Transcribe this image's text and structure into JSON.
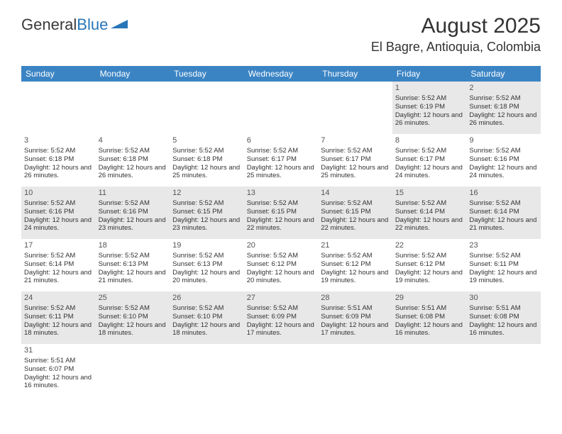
{
  "logo": {
    "text_general": "General",
    "text_blue": "Blue"
  },
  "title": "August 2025",
  "location": "El Bagre, Antioquia, Colombia",
  "colors": {
    "header_bg": "#3b84c4",
    "header_text": "#ffffff",
    "row_alt_bg": "#e8e8e8",
    "text": "#333333",
    "logo_blue": "#2876b8"
  },
  "weekdays": [
    "Sunday",
    "Monday",
    "Tuesday",
    "Wednesday",
    "Thursday",
    "Friday",
    "Saturday"
  ],
  "weeks": [
    [
      null,
      null,
      null,
      null,
      null,
      {
        "day": "1",
        "sunrise": "5:52 AM",
        "sunset": "6:19 PM",
        "daylight": "12 hours and 26 minutes."
      },
      {
        "day": "2",
        "sunrise": "5:52 AM",
        "sunset": "6:18 PM",
        "daylight": "12 hours and 26 minutes."
      }
    ],
    [
      {
        "day": "3",
        "sunrise": "5:52 AM",
        "sunset": "6:18 PM",
        "daylight": "12 hours and 26 minutes."
      },
      {
        "day": "4",
        "sunrise": "5:52 AM",
        "sunset": "6:18 PM",
        "daylight": "12 hours and 26 minutes."
      },
      {
        "day": "5",
        "sunrise": "5:52 AM",
        "sunset": "6:18 PM",
        "daylight": "12 hours and 25 minutes."
      },
      {
        "day": "6",
        "sunrise": "5:52 AM",
        "sunset": "6:17 PM",
        "daylight": "12 hours and 25 minutes."
      },
      {
        "day": "7",
        "sunrise": "5:52 AM",
        "sunset": "6:17 PM",
        "daylight": "12 hours and 25 minutes."
      },
      {
        "day": "8",
        "sunrise": "5:52 AM",
        "sunset": "6:17 PM",
        "daylight": "12 hours and 24 minutes."
      },
      {
        "day": "9",
        "sunrise": "5:52 AM",
        "sunset": "6:16 PM",
        "daylight": "12 hours and 24 minutes."
      }
    ],
    [
      {
        "day": "10",
        "sunrise": "5:52 AM",
        "sunset": "6:16 PM",
        "daylight": "12 hours and 24 minutes."
      },
      {
        "day": "11",
        "sunrise": "5:52 AM",
        "sunset": "6:16 PM",
        "daylight": "12 hours and 23 minutes."
      },
      {
        "day": "12",
        "sunrise": "5:52 AM",
        "sunset": "6:15 PM",
        "daylight": "12 hours and 23 minutes."
      },
      {
        "day": "13",
        "sunrise": "5:52 AM",
        "sunset": "6:15 PM",
        "daylight": "12 hours and 22 minutes."
      },
      {
        "day": "14",
        "sunrise": "5:52 AM",
        "sunset": "6:15 PM",
        "daylight": "12 hours and 22 minutes."
      },
      {
        "day": "15",
        "sunrise": "5:52 AM",
        "sunset": "6:14 PM",
        "daylight": "12 hours and 22 minutes."
      },
      {
        "day": "16",
        "sunrise": "5:52 AM",
        "sunset": "6:14 PM",
        "daylight": "12 hours and 21 minutes."
      }
    ],
    [
      {
        "day": "17",
        "sunrise": "5:52 AM",
        "sunset": "6:14 PM",
        "daylight": "12 hours and 21 minutes."
      },
      {
        "day": "18",
        "sunrise": "5:52 AM",
        "sunset": "6:13 PM",
        "daylight": "12 hours and 21 minutes."
      },
      {
        "day": "19",
        "sunrise": "5:52 AM",
        "sunset": "6:13 PM",
        "daylight": "12 hours and 20 minutes."
      },
      {
        "day": "20",
        "sunrise": "5:52 AM",
        "sunset": "6:12 PM",
        "daylight": "12 hours and 20 minutes."
      },
      {
        "day": "21",
        "sunrise": "5:52 AM",
        "sunset": "6:12 PM",
        "daylight": "12 hours and 19 minutes."
      },
      {
        "day": "22",
        "sunrise": "5:52 AM",
        "sunset": "6:12 PM",
        "daylight": "12 hours and 19 minutes."
      },
      {
        "day": "23",
        "sunrise": "5:52 AM",
        "sunset": "6:11 PM",
        "daylight": "12 hours and 19 minutes."
      }
    ],
    [
      {
        "day": "24",
        "sunrise": "5:52 AM",
        "sunset": "6:11 PM",
        "daylight": "12 hours and 18 minutes."
      },
      {
        "day": "25",
        "sunrise": "5:52 AM",
        "sunset": "6:10 PM",
        "daylight": "12 hours and 18 minutes."
      },
      {
        "day": "26",
        "sunrise": "5:52 AM",
        "sunset": "6:10 PM",
        "daylight": "12 hours and 18 minutes."
      },
      {
        "day": "27",
        "sunrise": "5:52 AM",
        "sunset": "6:09 PM",
        "daylight": "12 hours and 17 minutes."
      },
      {
        "day": "28",
        "sunrise": "5:51 AM",
        "sunset": "6:09 PM",
        "daylight": "12 hours and 17 minutes."
      },
      {
        "day": "29",
        "sunrise": "5:51 AM",
        "sunset": "6:08 PM",
        "daylight": "12 hours and 16 minutes."
      },
      {
        "day": "30",
        "sunrise": "5:51 AM",
        "sunset": "6:08 PM",
        "daylight": "12 hours and 16 minutes."
      }
    ],
    [
      {
        "day": "31",
        "sunrise": "5:51 AM",
        "sunset": "6:07 PM",
        "daylight": "12 hours and 16 minutes."
      },
      null,
      null,
      null,
      null,
      null,
      null
    ]
  ],
  "labels": {
    "sunrise": "Sunrise: ",
    "sunset": "Sunset: ",
    "daylight": "Daylight: "
  }
}
